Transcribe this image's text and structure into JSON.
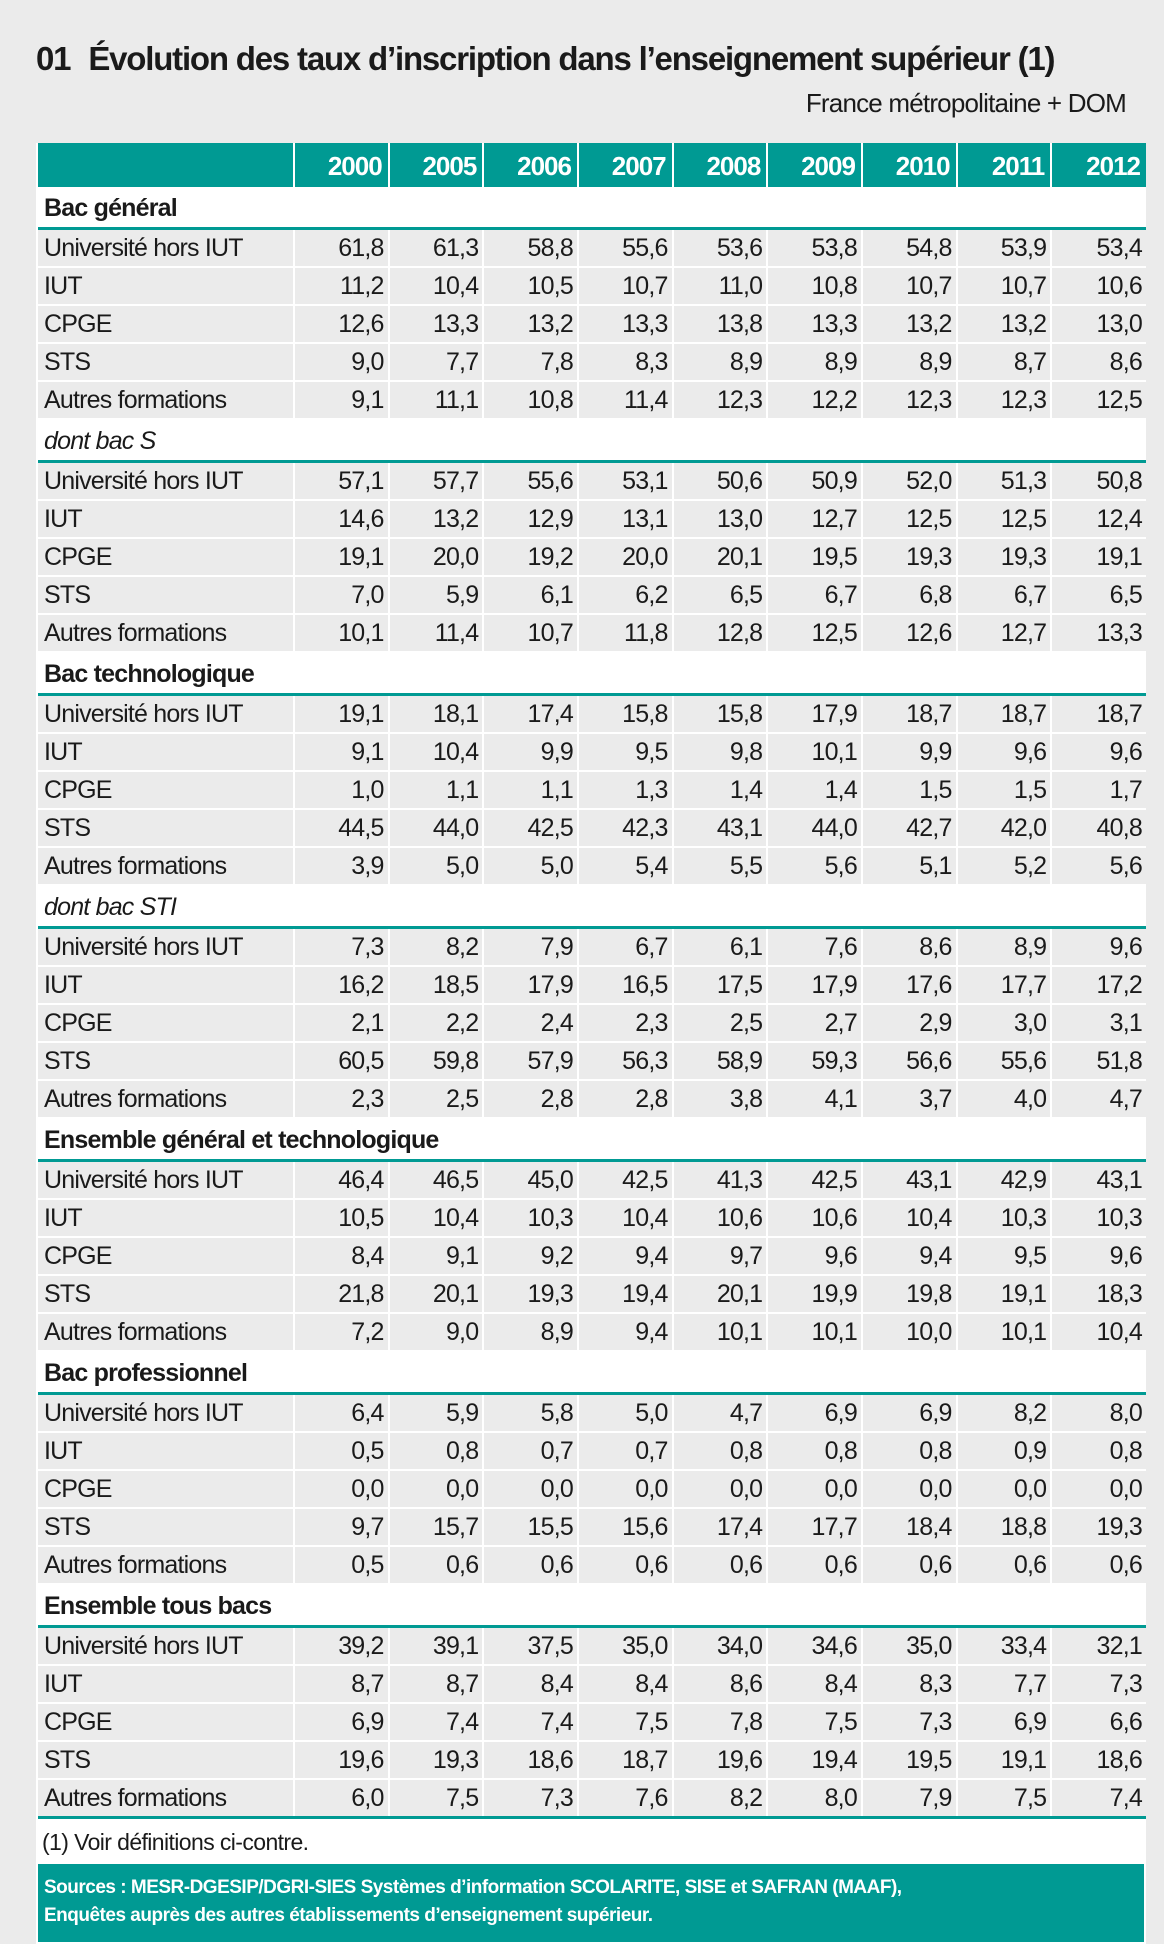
{
  "header": {
    "number": "01",
    "title": "Évolution des taux d’inscription dans l’enseignement supérieur (1)",
    "subtitle": "France métropolitaine + DOM"
  },
  "table": {
    "years": [
      "2000",
      "2005",
      "2006",
      "2007",
      "2008",
      "2009",
      "2010",
      "2011",
      "2012"
    ],
    "sections": [
      {
        "label": "Bac général",
        "italic": false,
        "rows": [
          {
            "label": "Université hors IUT",
            "values": [
              "61,8",
              "61,3",
              "58,8",
              "55,6",
              "53,6",
              "53,8",
              "54,8",
              "53,9",
              "53,4"
            ]
          },
          {
            "label": "IUT",
            "values": [
              "11,2",
              "10,4",
              "10,5",
              "10,7",
              "11,0",
              "10,8",
              "10,7",
              "10,7",
              "10,6"
            ]
          },
          {
            "label": "CPGE",
            "values": [
              "12,6",
              "13,3",
              "13,2",
              "13,3",
              "13,8",
              "13,3",
              "13,2",
              "13,2",
              "13,0"
            ]
          },
          {
            "label": "STS",
            "values": [
              "9,0",
              "7,7",
              "7,8",
              "8,3",
              "8,9",
              "8,9",
              "8,9",
              "8,7",
              "8,6"
            ]
          },
          {
            "label": "Autres formations",
            "values": [
              "9,1",
              "11,1",
              "10,8",
              "11,4",
              "12,3",
              "12,2",
              "12,3",
              "12,3",
              "12,5"
            ]
          }
        ]
      },
      {
        "label": "dont bac S",
        "italic": true,
        "rows": [
          {
            "label": "Université hors IUT",
            "values": [
              "57,1",
              "57,7",
              "55,6",
              "53,1",
              "50,6",
              "50,9",
              "52,0",
              "51,3",
              "50,8"
            ]
          },
          {
            "label": "IUT",
            "values": [
              "14,6",
              "13,2",
              "12,9",
              "13,1",
              "13,0",
              "12,7",
              "12,5",
              "12,5",
              "12,4"
            ]
          },
          {
            "label": "CPGE",
            "values": [
              "19,1",
              "20,0",
              "19,2",
              "20,0",
              "20,1",
              "19,5",
              "19,3",
              "19,3",
              "19,1"
            ]
          },
          {
            "label": "STS",
            "values": [
              "7,0",
              "5,9",
              "6,1",
              "6,2",
              "6,5",
              "6,7",
              "6,8",
              "6,7",
              "6,5"
            ]
          },
          {
            "label": "Autres formations",
            "values": [
              "10,1",
              "11,4",
              "10,7",
              "11,8",
              "12,8",
              "12,5",
              "12,6",
              "12,7",
              "13,3"
            ]
          }
        ]
      },
      {
        "label": "Bac technologique",
        "italic": false,
        "rows": [
          {
            "label": "Université hors IUT",
            "values": [
              "19,1",
              "18,1",
              "17,4",
              "15,8",
              "15,8",
              "17,9",
              "18,7",
              "18,7",
              "18,7"
            ]
          },
          {
            "label": "IUT",
            "values": [
              "9,1",
              "10,4",
              "9,9",
              "9,5",
              "9,8",
              "10,1",
              "9,9",
              "9,6",
              "9,6"
            ]
          },
          {
            "label": "CPGE",
            "values": [
              "1,0",
              "1,1",
              "1,1",
              "1,3",
              "1,4",
              "1,4",
              "1,5",
              "1,5",
              "1,7"
            ]
          },
          {
            "label": "STS",
            "values": [
              "44,5",
              "44,0",
              "42,5",
              "42,3",
              "43,1",
              "44,0",
              "42,7",
              "42,0",
              "40,8"
            ]
          },
          {
            "label": "Autres formations",
            "values": [
              "3,9",
              "5,0",
              "5,0",
              "5,4",
              "5,5",
              "5,6",
              "5,1",
              "5,2",
              "5,6"
            ]
          }
        ]
      },
      {
        "label": "dont bac STI",
        "italic": true,
        "rows": [
          {
            "label": "Université hors IUT",
            "values": [
              "7,3",
              "8,2",
              "7,9",
              "6,7",
              "6,1",
              "7,6",
              "8,6",
              "8,9",
              "9,6"
            ]
          },
          {
            "label": "IUT",
            "values": [
              "16,2",
              "18,5",
              "17,9",
              "16,5",
              "17,5",
              "17,9",
              "17,6",
              "17,7",
              "17,2"
            ]
          },
          {
            "label": "CPGE",
            "values": [
              "2,1",
              "2,2",
              "2,4",
              "2,3",
              "2,5",
              "2,7",
              "2,9",
              "3,0",
              "3,1"
            ]
          },
          {
            "label": "STS",
            "values": [
              "60,5",
              "59,8",
              "57,9",
              "56,3",
              "58,9",
              "59,3",
              "56,6",
              "55,6",
              "51,8"
            ]
          },
          {
            "label": "Autres formations",
            "values": [
              "2,3",
              "2,5",
              "2,8",
              "2,8",
              "3,8",
              "4,1",
              "3,7",
              "4,0",
              "4,7"
            ]
          }
        ]
      },
      {
        "label": "Ensemble général et technologique",
        "italic": false,
        "rows": [
          {
            "label": "Université hors IUT",
            "values": [
              "46,4",
              "46,5",
              "45,0",
              "42,5",
              "41,3",
              "42,5",
              "43,1",
              "42,9",
              "43,1"
            ]
          },
          {
            "label": "IUT",
            "values": [
              "10,5",
              "10,4",
              "10,3",
              "10,4",
              "10,6",
              "10,6",
              "10,4",
              "10,3",
              "10,3"
            ]
          },
          {
            "label": "CPGE",
            "values": [
              "8,4",
              "9,1",
              "9,2",
              "9,4",
              "9,7",
              "9,6",
              "9,4",
              "9,5",
              "9,6"
            ]
          },
          {
            "label": "STS",
            "values": [
              "21,8",
              "20,1",
              "19,3",
              "19,4",
              "20,1",
              "19,9",
              "19,8",
              "19,1",
              "18,3"
            ]
          },
          {
            "label": "Autres formations",
            "values": [
              "7,2",
              "9,0",
              "8,9",
              "9,4",
              "10,1",
              "10,1",
              "10,0",
              "10,1",
              "10,4"
            ]
          }
        ]
      },
      {
        "label": "Bac professionnel",
        "italic": false,
        "rows": [
          {
            "label": "Université hors IUT",
            "values": [
              "6,4",
              "5,9",
              "5,8",
              "5,0",
              "4,7",
              "6,9",
              "6,9",
              "8,2",
              "8,0"
            ]
          },
          {
            "label": "IUT",
            "values": [
              "0,5",
              "0,8",
              "0,7",
              "0,7",
              "0,8",
              "0,8",
              "0,8",
              "0,9",
              "0,8"
            ]
          },
          {
            "label": "CPGE",
            "values": [
              "0,0",
              "0,0",
              "0,0",
              "0,0",
              "0,0",
              "0,0",
              "0,0",
              "0,0",
              "0,0"
            ]
          },
          {
            "label": "STS",
            "values": [
              "9,7",
              "15,7",
              "15,5",
              "15,6",
              "17,4",
              "17,7",
              "18,4",
              "18,8",
              "19,3"
            ]
          },
          {
            "label": "Autres formations",
            "values": [
              "0,5",
              "0,6",
              "0,6",
              "0,6",
              "0,6",
              "0,6",
              "0,6",
              "0,6",
              "0,6"
            ]
          }
        ]
      },
      {
        "label": "Ensemble tous bacs",
        "italic": false,
        "rows": [
          {
            "label": "Université hors IUT",
            "values": [
              "39,2",
              "39,1",
              "37,5",
              "35,0",
              "34,0",
              "34,6",
              "35,0",
              "33,4",
              "32,1"
            ]
          },
          {
            "label": "IUT",
            "values": [
              "8,7",
              "8,7",
              "8,4",
              "8,4",
              "8,6",
              "8,4",
              "8,3",
              "7,7",
              "7,3"
            ]
          },
          {
            "label": "CPGE",
            "values": [
              "6,9",
              "7,4",
              "7,4",
              "7,5",
              "7,8",
              "7,5",
              "7,3",
              "6,9",
              "6,6"
            ]
          },
          {
            "label": "STS",
            "values": [
              "19,6",
              "19,3",
              "18,6",
              "18,7",
              "19,6",
              "19,4",
              "19,5",
              "19,1",
              "18,6"
            ]
          },
          {
            "label": "Autres formations",
            "values": [
              "6,0",
              "7,5",
              "7,3",
              "7,6",
              "8,2",
              "8,0",
              "7,9",
              "7,5",
              "7,4"
            ]
          }
        ]
      }
    ]
  },
  "footnote": "(1) Voir définitions ci-contre.",
  "sources": [
    "Sources : MESR-DGESIP/DGRI-SIES Systèmes d’information SCOLARITE, SISE et SAFRAN (MAAF),",
    "Enquêtes auprès des autres établissements d’enseignement supérieur."
  ],
  "colors": {
    "accent": "#009a93",
    "row_bg": "#ebebeb",
    "page_bg": "#ebebeb"
  }
}
